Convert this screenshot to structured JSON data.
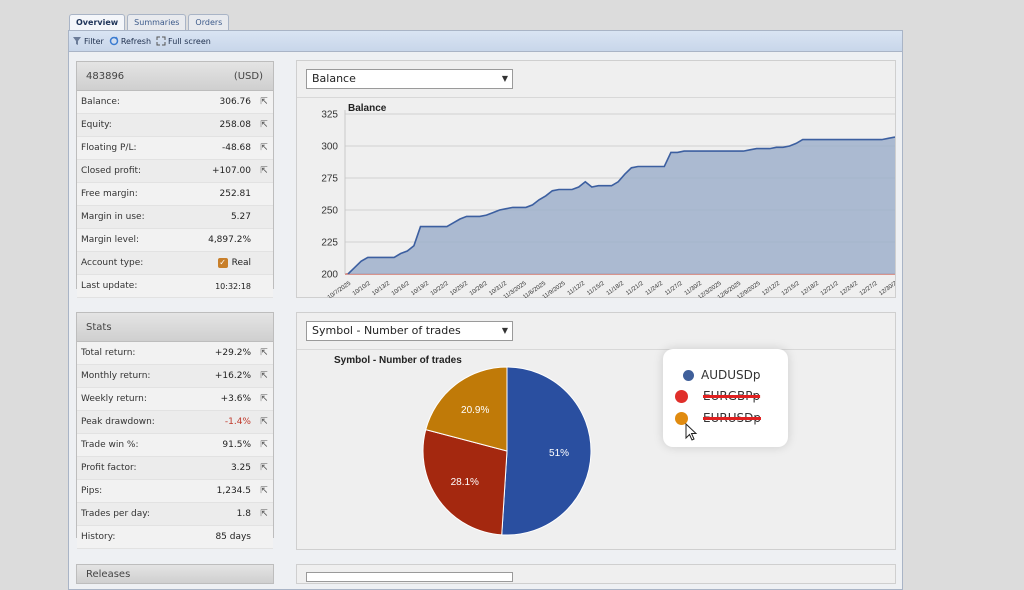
{
  "tabs": [
    {
      "label": "Overview",
      "active": true
    },
    {
      "label": "Summaries",
      "active": false
    },
    {
      "label": "Orders",
      "active": false
    }
  ],
  "toolbar": {
    "filter": "Filter",
    "refresh": "Refresh",
    "fullscreen": "Full screen"
  },
  "account": {
    "id": "483896",
    "currency": "(USD)",
    "rows": [
      {
        "label": "Balance:",
        "value": "306.76"
      },
      {
        "label": "Equity:",
        "value": "258.08"
      },
      {
        "label": "Floating P/L:",
        "value": "-48.68"
      },
      {
        "label": "Closed profit:",
        "value": "+107.00"
      },
      {
        "label": "Free margin:",
        "value": "252.81"
      },
      {
        "label": "Margin in use:",
        "value": "5.27"
      },
      {
        "label": "Margin level:",
        "value": "4,897.2%"
      },
      {
        "label": "Account type:",
        "value": "Real"
      },
      {
        "label": "Last update:",
        "value": "10:32:18"
      }
    ]
  },
  "stats": {
    "title": "Stats",
    "rows": [
      {
        "label": "Total return:",
        "value": "+29.2%"
      },
      {
        "label": "Monthly return:",
        "value": "+16.2%"
      },
      {
        "label": "Weekly return:",
        "value": "+3.6%"
      },
      {
        "label": "Peak drawdown:",
        "value": "-1.4%"
      },
      {
        "label": "Trade win %:",
        "value": "91.5%"
      },
      {
        "label": "Profit factor:",
        "value": "3.25"
      },
      {
        "label": "Pips:",
        "value": "1,234.5"
      },
      {
        "label": "Trades per day:",
        "value": "1.8"
      },
      {
        "label": "History:",
        "value": "85 days"
      }
    ]
  },
  "bottom_panel_title": "Releases",
  "colors": {
    "accent": "#3c5fa0",
    "area": "#9fb0cb",
    "audusd": "#2a4fa0",
    "eurgbp": "#a4280f",
    "eurusd": "#c07a08"
  },
  "chart_data": [
    {
      "type": "area",
      "selector": "Balance",
      "title": "Balance",
      "ylim": [
        200,
        325
      ],
      "yticks": [
        200,
        225,
        250,
        275,
        300,
        325
      ],
      "x_tick_labels": [
        "10/7/2025",
        "10/10/2",
        "10/13/2",
        "10/16/2",
        "10/19/2",
        "10/22/2",
        "10/25/2",
        "10/28/2",
        "10/31/2",
        "11/3/2025",
        "11/6/2025",
        "11/9/2025",
        "11/12/2",
        "11/15/2",
        "11/18/2",
        "11/21/2",
        "11/24/2",
        "11/27/2",
        "11/30/2",
        "12/3/2025",
        "12/6/2025",
        "12/9/2025",
        "12/12/2",
        "12/15/2",
        "12/18/2",
        "12/21/2",
        "12/24/2",
        "12/27/2",
        "12/30/2"
      ],
      "y": [
        200,
        205,
        210,
        213,
        213,
        213,
        213,
        213,
        216,
        218,
        222,
        237,
        237,
        237,
        237,
        237,
        240,
        243,
        245,
        245,
        245,
        246,
        248,
        250,
        251,
        252,
        252,
        252,
        254,
        258,
        261,
        265,
        266,
        266,
        266,
        268,
        272,
        268,
        269,
        269,
        269,
        272,
        278,
        283,
        284,
        284,
        284,
        284,
        284,
        295,
        295,
        296,
        296,
        296,
        296,
        296,
        296,
        296,
        296,
        296,
        296,
        297,
        298,
        298,
        298,
        299,
        299,
        300,
        302,
        305,
        305,
        305,
        305,
        305,
        305,
        305,
        305,
        305,
        305,
        305,
        305,
        305,
        306,
        307
      ]
    },
    {
      "type": "pie",
      "selector": "Symbol - Number of trades",
      "title": "Symbol - Number of trades",
      "series": [
        {
          "name": "AUDUSDp",
          "value": 51,
          "label": "51%"
        },
        {
          "name": "EURGBPp",
          "value": 28.1,
          "label": "28.1%"
        },
        {
          "name": "EURUSDp",
          "value": 20.9,
          "label": "20.9%"
        }
      ]
    }
  ]
}
